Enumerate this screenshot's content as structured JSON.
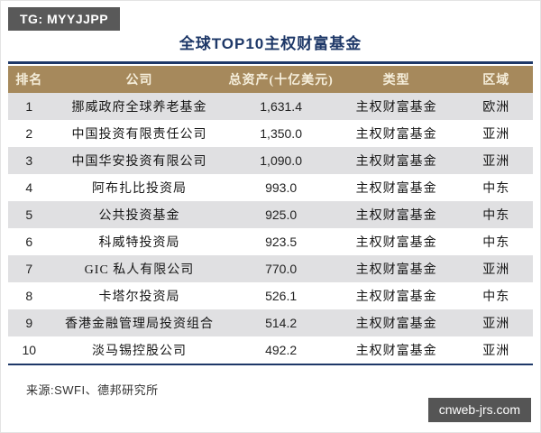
{
  "badge_top_left": "TG: MYYJJPP",
  "title": "全球TOP10主权财富基金",
  "chart_data": {
    "type": "table",
    "title": "全球TOP10主权财富基金",
    "columns": [
      "排名",
      "公司",
      "总资产(十亿美元)",
      "类型",
      "区域"
    ],
    "rows": [
      [
        "1",
        "挪威政府全球养老基金",
        "1,631.4",
        "主权财富基金",
        "欧洲"
      ],
      [
        "2",
        "中国投资有限责任公司",
        "1,350.0",
        "主权财富基金",
        "亚洲"
      ],
      [
        "3",
        "中国华安投资有限公司",
        "1,090.0",
        "主权财富基金",
        "亚洲"
      ],
      [
        "4",
        "阿布扎比投资局",
        "993.0",
        "主权财富基金",
        "中东"
      ],
      [
        "5",
        "公共投资基金",
        "925.0",
        "主权财富基金",
        "中东"
      ],
      [
        "6",
        "科威特投资局",
        "923.5",
        "主权财富基金",
        "中东"
      ],
      [
        "7",
        "GIC 私人有限公司",
        "770.0",
        "主权财富基金",
        "亚洲"
      ],
      [
        "8",
        "卡塔尔投资局",
        "526.1",
        "主权财富基金",
        "中东"
      ],
      [
        "9",
        "香港金融管理局投资组合",
        "514.2",
        "主权财富基金",
        "亚洲"
      ],
      [
        "10",
        "淡马锡控股公司",
        "492.2",
        "主权财富基金",
        "亚洲"
      ]
    ],
    "source": "来源:SWFI、德邦研究所",
    "layout": "centered columns, alternating row shading, navy rules above header and below last row"
  },
  "source_note": "来源:SWFI、德邦研究所",
  "badge_bottom_right": "cnweb-jrs.com",
  "colors": {
    "accent_navy": "#1e3868",
    "header_background": "#a6895c",
    "header_text": "#f5eedb",
    "row_alternate": "#e0e0e2",
    "badge_background": "#595959",
    "watermark_background": "#555555"
  }
}
